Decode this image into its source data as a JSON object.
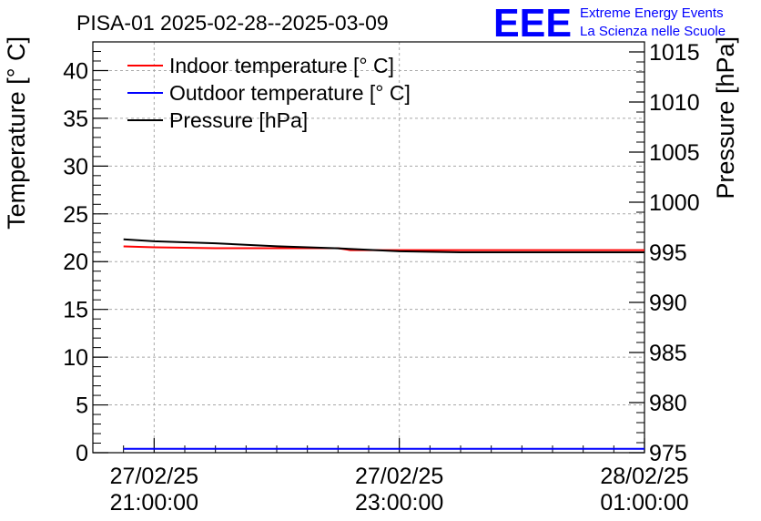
{
  "chart_data": {
    "type": "line",
    "title": "PISA-01 2025-02-28--2025-03-09",
    "ylabel_left": "Temperature [° C]",
    "ylabel_right": "Pressure [hPa]",
    "y_left_range": [
      0,
      43
    ],
    "y_right_range": [
      975,
      1016
    ],
    "y_left_ticks": [
      "0",
      "5",
      "10",
      "15",
      "20",
      "25",
      "30",
      "35",
      "40"
    ],
    "y_right_ticks": [
      "975",
      "980",
      "985",
      "990",
      "995",
      "1000",
      "1005",
      "1010",
      "1015"
    ],
    "x_range_hours": [
      -0.5,
      4.0
    ],
    "x_ticks": [
      {
        "t": 0,
        "date": "27/02/25",
        "time": "21:00:00"
      },
      {
        "t": 2,
        "date": "27/02/25",
        "time": "23:00:00"
      },
      {
        "t": 4,
        "date": "28/02/25",
        "time": "01:00:00"
      }
    ],
    "grid": true,
    "legend_position": "top-left",
    "series": [
      {
        "name": "Indoor temperature [° C]",
        "axis": "left",
        "color": "#ff0000",
        "x": [
          -0.25,
          0.0,
          0.5,
          1.0,
          1.5,
          1.6,
          2.0,
          2.5,
          3.0,
          3.5,
          4.0
        ],
        "y": [
          21.6,
          21.5,
          21.4,
          21.4,
          21.4,
          21.2,
          21.2,
          21.2,
          21.2,
          21.2,
          21.2
        ]
      },
      {
        "name": "Outdoor temperature [° C]",
        "axis": "left",
        "color": "#0000ff",
        "x": [
          -0.25,
          4.0
        ],
        "y": [
          0.4,
          0.4
        ]
      },
      {
        "name": "Pressure [hPa]",
        "axis": "right",
        "color": "#000000",
        "x": [
          -0.25,
          0.0,
          0.5,
          1.0,
          1.5,
          2.0,
          2.5,
          3.0,
          3.5,
          4.0
        ],
        "y": [
          996.3,
          996.1,
          995.9,
          995.6,
          995.4,
          995.1,
          995.0,
          995.0,
          995.0,
          995.0
        ]
      }
    ]
  },
  "logo": {
    "mark": "EEE",
    "line1": "Extreme Energy Events",
    "line2": "La Scienza nelle Scuole",
    "color": "#0000ff"
  }
}
